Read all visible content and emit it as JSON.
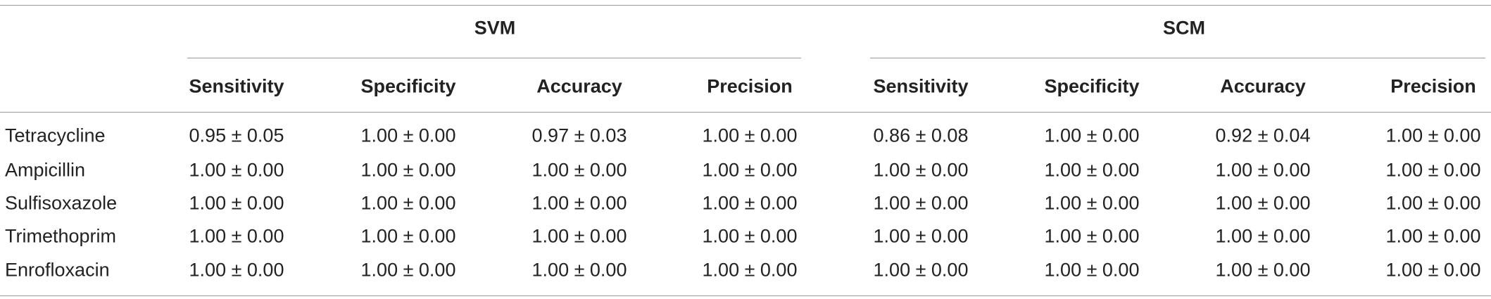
{
  "table": {
    "groups": [
      "SVM",
      "SCM"
    ],
    "columns": [
      "Sensitivity",
      "Specificity",
      "Accuracy",
      "Precision",
      "Sensitivity",
      "Specificity",
      "Accuracy",
      "Precision"
    ],
    "rows": [
      [
        "Tetracycline",
        "0.95 ± 0.05",
        "1.00 ± 0.00",
        "0.97 ± 0.03",
        "1.00 ± 0.00",
        "0.86 ± 0.08",
        "1.00 ± 0.00",
        "0.92 ± 0.04",
        "1.00 ± 0.00"
      ],
      [
        "Ampicillin",
        "1.00 ± 0.00",
        "1.00 ± 0.00",
        "1.00 ± 0.00",
        "1.00 ± 0.00",
        "1.00 ± 0.00",
        "1.00 ± 0.00",
        "1.00 ± 0.00",
        "1.00 ± 0.00"
      ],
      [
        "Sulfisoxazole",
        "1.00 ± 0.00",
        "1.00 ± 0.00",
        "1.00 ± 0.00",
        "1.00 ± 0.00",
        "1.00 ± 0.00",
        "1.00 ± 0.00",
        "1.00 ± 0.00",
        "1.00 ± 0.00"
      ],
      [
        "Trimethoprim",
        "1.00 ± 0.00",
        "1.00 ± 0.00",
        "1.00 ± 0.00",
        "1.00 ± 0.00",
        "1.00 ± 0.00",
        "1.00 ± 0.00",
        "1.00 ± 0.00",
        "1.00 ± 0.00"
      ],
      [
        "Enrofloxacin",
        "1.00 ± 0.00",
        "1.00 ± 0.00",
        "1.00 ± 0.00",
        "1.00 ± 0.00",
        "1.00 ± 0.00",
        "1.00 ± 0.00",
        "1.00 ± 0.00",
        "1.00 ± 0.00"
      ]
    ]
  }
}
